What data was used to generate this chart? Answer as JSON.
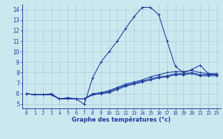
{
  "xlabel": "Graphe des températures (°c)",
  "background_color": "#cce8ef",
  "grid_color": "#aaccdd",
  "line_color": "#1a3a9e",
  "xlim": [
    -0.5,
    23.5
  ],
  "ylim": [
    4.6,
    14.5
  ],
  "xticks": [
    0,
    1,
    2,
    3,
    4,
    5,
    6,
    7,
    8,
    9,
    10,
    11,
    12,
    13,
    14,
    15,
    16,
    17,
    18,
    19,
    20,
    21,
    22,
    23
  ],
  "yticks": [
    5,
    6,
    7,
    8,
    9,
    10,
    11,
    12,
    13,
    14
  ],
  "series": [
    [
      6.0,
      5.9,
      5.9,
      6.0,
      5.5,
      5.5,
      5.5,
      5.0,
      7.5,
      9.0,
      10.0,
      11.0,
      12.2,
      13.3,
      14.2,
      14.2,
      13.5,
      11.0,
      8.6,
      8.0,
      8.3,
      8.7,
      7.9,
      7.8
    ],
    [
      6.0,
      5.9,
      5.9,
      5.9,
      5.5,
      5.6,
      5.5,
      5.5,
      6.0,
      6.1,
      6.3,
      6.6,
      6.9,
      7.1,
      7.3,
      7.6,
      7.8,
      8.0,
      8.1,
      8.1,
      8.2,
      8.0,
      7.9,
      7.9
    ],
    [
      6.0,
      5.9,
      5.9,
      5.9,
      5.5,
      5.6,
      5.5,
      5.5,
      5.9,
      6.0,
      6.2,
      6.5,
      6.8,
      7.0,
      7.2,
      7.4,
      7.6,
      7.7,
      7.9,
      7.9,
      8.0,
      7.8,
      7.8,
      7.8
    ],
    [
      6.0,
      5.9,
      5.9,
      5.9,
      5.5,
      5.6,
      5.5,
      5.5,
      5.9,
      6.0,
      6.1,
      6.4,
      6.7,
      6.9,
      7.1,
      7.3,
      7.5,
      7.6,
      7.8,
      7.8,
      7.9,
      7.7,
      7.7,
      7.7
    ]
  ]
}
